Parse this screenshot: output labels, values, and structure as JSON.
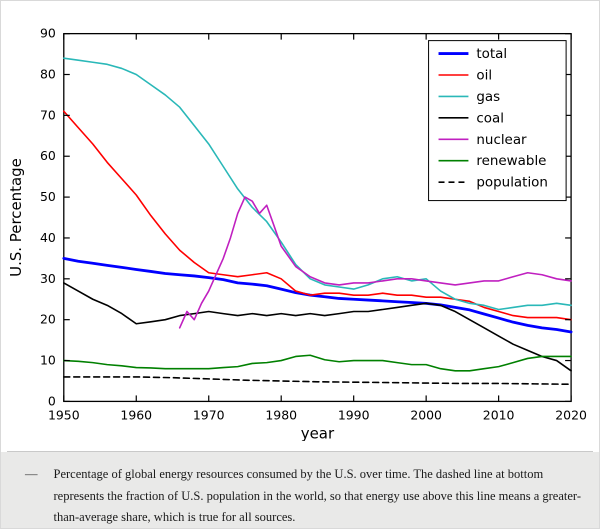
{
  "figure": {
    "caption_dash": "—",
    "caption_text": "Percentage of global energy resources consumed by the U.S. over time. The dashed line at bottom represents the fraction of U.S. population in the world, so that energy use above this line means a greater-than-average share, which is true for all sources."
  },
  "chart_data": {
    "type": "line",
    "title": "",
    "xlabel": "year",
    "ylabel": "U.S. Percentage",
    "xlim": [
      1950,
      2020
    ],
    "ylim": [
      0,
      90
    ],
    "xticks": [
      1950,
      1960,
      1970,
      1980,
      1990,
      2000,
      2010,
      2020
    ],
    "yticks": [
      0,
      10,
      20,
      30,
      40,
      50,
      60,
      70,
      80,
      90
    ],
    "grid": false,
    "legend_position": "upper right",
    "frame_color": "#000000",
    "series": [
      {
        "name": "total",
        "color": "#0000ff",
        "width": 2.8,
        "dash": null,
        "x": [
          1950,
          1952,
          1954,
          1956,
          1958,
          1960,
          1962,
          1964,
          1966,
          1968,
          1970,
          1972,
          1974,
          1976,
          1978,
          1980,
          1982,
          1984,
          1986,
          1988,
          1990,
          1992,
          1994,
          1996,
          1998,
          2000,
          2002,
          2004,
          2006,
          2008,
          2010,
          2012,
          2014,
          2016,
          2018,
          2020
        ],
        "values": [
          35,
          34.3,
          33.8,
          33.3,
          32.8,
          32.3,
          31.8,
          31.3,
          31,
          30.7,
          30.3,
          29.8,
          29,
          28.7,
          28.3,
          27.5,
          26.6,
          26,
          25.6,
          25.2,
          25,
          24.8,
          24.6,
          24.4,
          24.2,
          24,
          23.6,
          23,
          22.4,
          21.4,
          20.4,
          19.4,
          18.6,
          18,
          17.6,
          17
        ]
      },
      {
        "name": "oil",
        "color": "#ff0000",
        "width": 1.6,
        "dash": null,
        "x": [
          1950,
          1952,
          1954,
          1956,
          1958,
          1960,
          1962,
          1964,
          1966,
          1968,
          1970,
          1972,
          1974,
          1976,
          1978,
          1980,
          1982,
          1984,
          1986,
          1988,
          1990,
          1992,
          1994,
          1996,
          1998,
          2000,
          2002,
          2004,
          2006,
          2008,
          2010,
          2012,
          2014,
          2016,
          2018,
          2020
        ],
        "values": [
          71,
          67,
          63,
          58.5,
          54.5,
          50.5,
          45.5,
          41,
          37,
          34,
          31.5,
          31,
          30.5,
          31,
          31.5,
          30,
          27,
          26,
          26.5,
          26.5,
          26,
          26,
          26.5,
          26,
          26,
          25.5,
          25.5,
          25,
          24.5,
          23,
          22,
          21,
          20.5,
          20.5,
          20.5,
          20
        ]
      },
      {
        "name": "gas",
        "color": "#2ab8b8",
        "width": 1.6,
        "dash": null,
        "x": [
          1950,
          1952,
          1954,
          1956,
          1958,
          1960,
          1962,
          1964,
          1966,
          1968,
          1970,
          1972,
          1974,
          1976,
          1978,
          1980,
          1982,
          1984,
          1986,
          1988,
          1990,
          1992,
          1994,
          1996,
          1998,
          2000,
          2002,
          2004,
          2006,
          2008,
          2010,
          2012,
          2014,
          2016,
          2018,
          2020
        ],
        "values": [
          84,
          83.5,
          83,
          82.5,
          81.5,
          80,
          77.5,
          75,
          72,
          67.5,
          63,
          57.5,
          52,
          47.5,
          44,
          39,
          33.5,
          30,
          28.5,
          28,
          27.5,
          28.5,
          30,
          30.5,
          29.5,
          30,
          27,
          25,
          24,
          23.5,
          22.5,
          23,
          23.5,
          23.5,
          24,
          23.5
        ]
      },
      {
        "name": "coal",
        "color": "#000000",
        "width": 1.6,
        "dash": null,
        "x": [
          1950,
          1952,
          1954,
          1956,
          1958,
          1960,
          1962,
          1964,
          1966,
          1968,
          1970,
          1972,
          1974,
          1976,
          1978,
          1980,
          1982,
          1984,
          1986,
          1988,
          1990,
          1992,
          1994,
          1996,
          1998,
          2000,
          2002,
          2004,
          2006,
          2008,
          2010,
          2012,
          2014,
          2016,
          2018,
          2020
        ],
        "values": [
          29,
          27,
          25,
          23.5,
          21.5,
          19,
          19.5,
          20,
          21,
          21.5,
          22,
          21.5,
          21,
          21.5,
          21,
          21.5,
          21,
          21.5,
          21,
          21.5,
          22,
          22,
          22.5,
          23,
          23.5,
          24,
          23.5,
          22,
          20,
          18,
          16,
          14,
          12.5,
          11,
          10,
          7.5
        ]
      },
      {
        "name": "nuclear",
        "color": "#c020c0",
        "width": 1.6,
        "dash": null,
        "x": [
          1966,
          1967,
          1968,
          1969,
          1970,
          1971,
          1972,
          1973,
          1974,
          1975,
          1976,
          1977,
          1978,
          1979,
          1980,
          1982,
          1984,
          1986,
          1988,
          1990,
          1992,
          1994,
          1996,
          1998,
          2000,
          2002,
          2004,
          2006,
          2008,
          2010,
          2012,
          2014,
          2016,
          2018,
          2020
        ],
        "values": [
          18,
          22,
          20,
          24,
          27,
          31,
          35,
          40,
          46,
          50,
          49,
          46,
          48,
          43,
          38,
          33,
          30.5,
          29,
          28.5,
          29,
          29,
          29.5,
          30,
          30,
          29.5,
          29,
          28.5,
          29,
          29.5,
          29.5,
          30.5,
          31.5,
          31,
          30,
          29.5
        ]
      },
      {
        "name": "renewable",
        "color": "#008000",
        "width": 1.6,
        "dash": null,
        "x": [
          1950,
          1952,
          1954,
          1956,
          1958,
          1960,
          1962,
          1964,
          1966,
          1968,
          1970,
          1972,
          1974,
          1976,
          1978,
          1980,
          1982,
          1984,
          1986,
          1988,
          1990,
          1992,
          1994,
          1996,
          1998,
          2000,
          2002,
          2004,
          2006,
          2008,
          2010,
          2012,
          2014,
          2016,
          2018,
          2020
        ],
        "values": [
          10,
          9.8,
          9.5,
          9,
          8.7,
          8.3,
          8.2,
          8,
          8,
          8,
          8,
          8.3,
          8.5,
          9.3,
          9.5,
          10,
          11,
          11.3,
          10.2,
          9.7,
          10,
          10,
          10,
          9.5,
          9,
          9,
          8,
          7.5,
          7.5,
          8,
          8.5,
          9.5,
          10.5,
          11,
          11,
          11
        ]
      },
      {
        "name": "population",
        "color": "#000000",
        "width": 1.6,
        "dash": "6,4",
        "x": [
          1950,
          1955,
          1960,
          1965,
          1970,
          1975,
          1980,
          1985,
          1990,
          1995,
          2000,
          2005,
          2010,
          2015,
          2020
        ],
        "values": [
          6,
          6,
          6,
          5.8,
          5.5,
          5.2,
          5,
          4.8,
          4.7,
          4.6,
          4.5,
          4.4,
          4.4,
          4.3,
          4.2
        ]
      }
    ]
  }
}
